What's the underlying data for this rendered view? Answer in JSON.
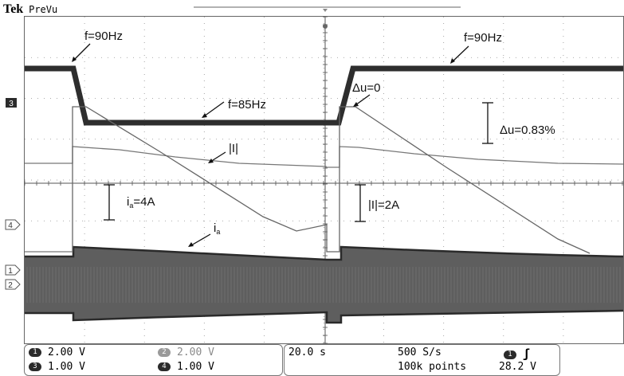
{
  "header": {
    "brand": "Tek",
    "mode": "PreVu"
  },
  "waveform": {
    "annotations": {
      "freq_start": "f=90Hz",
      "freq_mid": "f=85Hz",
      "freq_end": "f=90Hz",
      "delta_u_zero": "Δu=0",
      "delta_u_pct": "Δu=0.83%",
      "I_mag": "|I|",
      "ia_scale": "=4A",
      "ia_scale_prefix": "i",
      "ia_scale_sub": "a",
      "I_scale": "|I|=2A",
      "ia_label": "i",
      "ia_label_sub": "a"
    },
    "channel_markers": {
      "ch3": "3",
      "ch4": "4",
      "ch1": "1",
      "ch2": "2"
    }
  },
  "channels": {
    "ch1": {
      "num": "1",
      "scale": "2.00 V"
    },
    "ch2": {
      "num": "2",
      "scale": "2.00 V"
    },
    "ch3": {
      "num": "3",
      "scale": "1.00 V"
    },
    "ch4": {
      "num": "4",
      "scale": "1.00 V"
    }
  },
  "timebase": {
    "time_div": "20.0 s",
    "sample_rate": "500 S/s",
    "record_length": "100k points"
  },
  "trigger": {
    "source": "1",
    "slope_icon": "rising-edge-icon",
    "slope_glyph": "ʃ",
    "level": "28.2 V"
  },
  "colors": {
    "trace_dark": "#2e2e2e",
    "trace_gray": "#777777",
    "grid": "#909090"
  }
}
